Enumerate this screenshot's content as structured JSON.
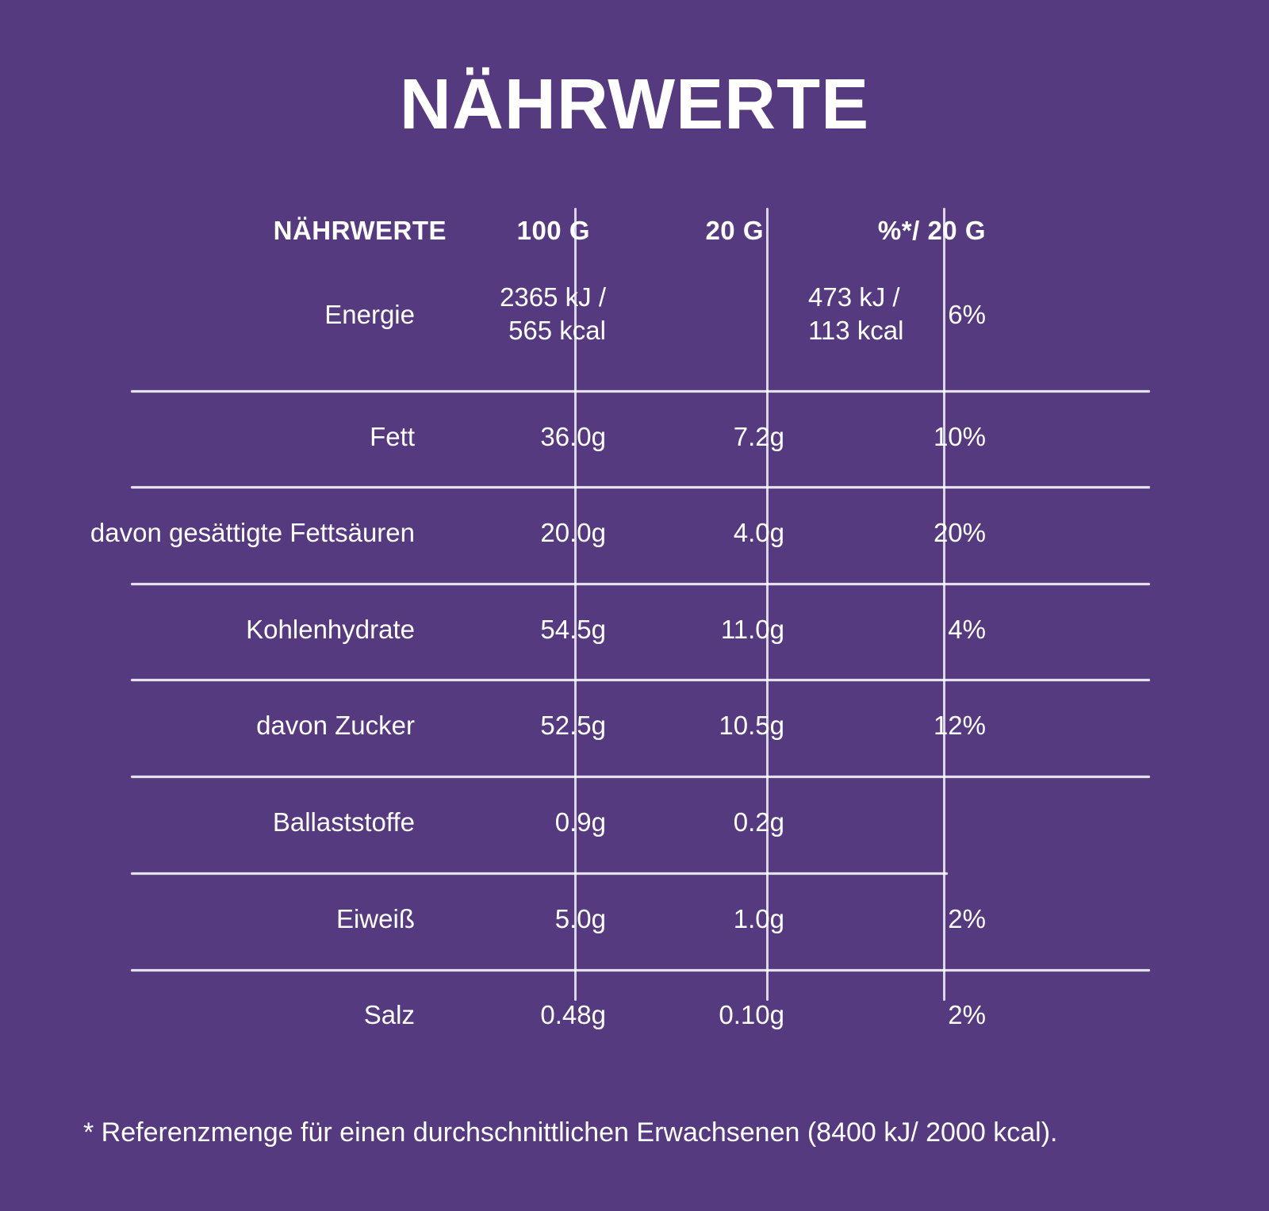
{
  "title": "NÄHRWERTE",
  "table": {
    "headers": {
      "label": "NÄHRWERTE",
      "per100": "100 G",
      "per20": "20 G",
      "pct": "%*/ 20 G"
    },
    "rows": [
      {
        "label": "Energie",
        "per100_line1": "2365 kJ /",
        "per100_line2": "565 kcal",
        "per20_line1": "473 kJ /",
        "per20_line2": "113 kcal",
        "pct": "6%"
      },
      {
        "label": "Fett",
        "per100": "36.0g",
        "per20": "7.2g",
        "pct": "10%"
      },
      {
        "label": "davon gesättigte Fettsäuren",
        "per100": "20.0g",
        "per20": "4.0g",
        "pct": "20%"
      },
      {
        "label": "Kohlenhydrate",
        "per100": "54.5g",
        "per20": "11.0g",
        "pct": "4%"
      },
      {
        "label": "davon Zucker",
        "per100": "52.5g",
        "per20": "10.5g",
        "pct": "12%"
      },
      {
        "label": "Ballaststoffe",
        "per100": "0.9g",
        "per20": "0.2g",
        "pct": ""
      },
      {
        "label": "Eiweiß",
        "per100": "5.0g",
        "per20": "1.0g",
        "pct": "2%"
      },
      {
        "label": "Salz",
        "per100": "0.48g",
        "per20": "0.10g",
        "pct": "2%"
      }
    ]
  },
  "footnote": "* Referenzmenge für einen durchschnittlichen Erwachsenen (8400 kJ/ 2000 kcal)."
}
